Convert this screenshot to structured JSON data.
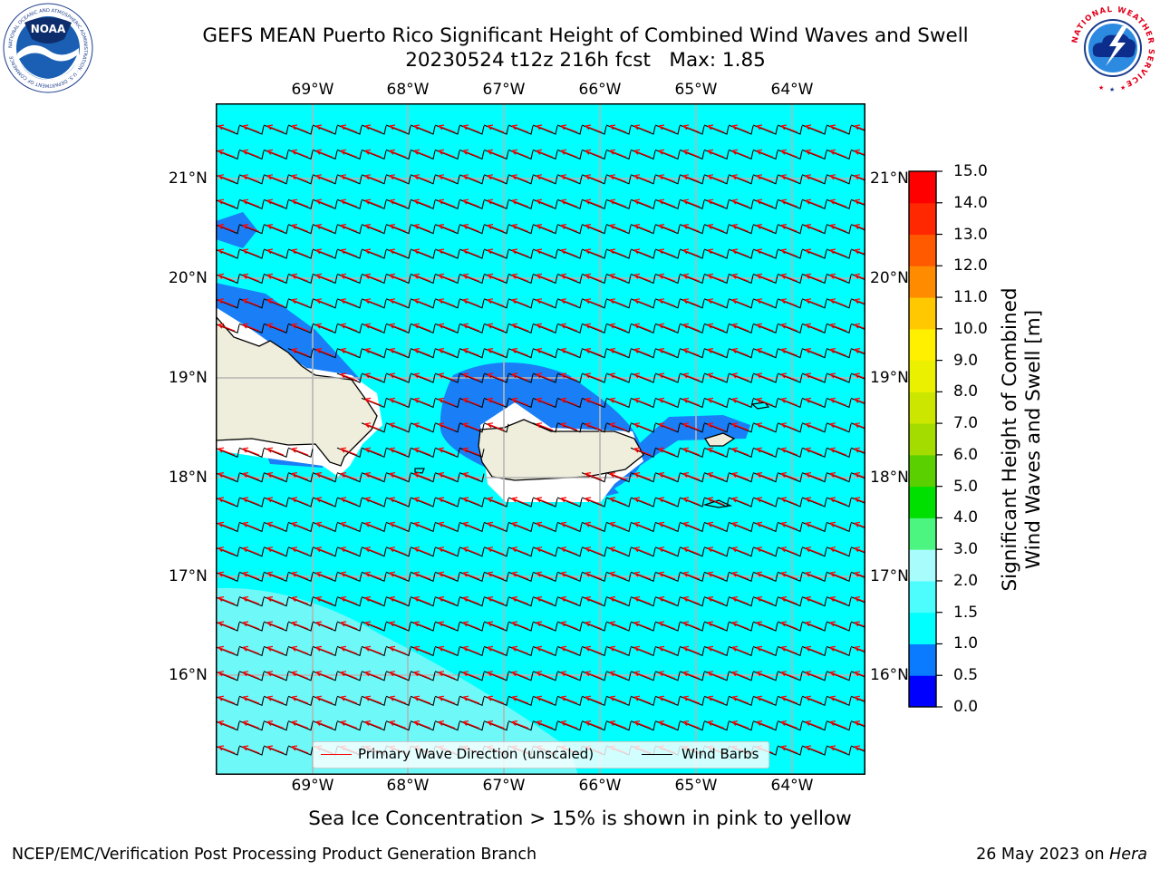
{
  "title": {
    "line1": "GEFS MEAN Puerto Rico Significant Height of Combined Wind Waves and Swell",
    "line2": "20230524 t12z 216h fcst   Max: 1.85"
  },
  "logos": {
    "noaa": {
      "text": "NOAA",
      "ring_text": "NATIONAL OCEANIC AND ATMOSPHERIC ADMINISTRATION · U.S. DEPARTMENT OF COMMERCE",
      "color": "#1a3c8c"
    },
    "nws": {
      "ring_text": "NATIONAL WEATHER SERVICE",
      "color": "#e0001b"
    }
  },
  "axes": {
    "lon_ticks": [
      "69°W",
      "68°W",
      "67°W",
      "66°W",
      "65°W",
      "64°W"
    ],
    "lat_ticks": [
      "21°N",
      "20°N",
      "19°N",
      "18°N",
      "17°N",
      "16°N"
    ]
  },
  "colorbar": {
    "label_line1": "Significant Height of Combined",
    "label_line2": "Wind Waves and Swell [m]",
    "ticks": [
      "0.0",
      "0.5",
      "1.0",
      "1.5",
      "2.0",
      "3.0",
      "4.0",
      "5.0",
      "6.0",
      "7.0",
      "8.0",
      "9.0",
      "10.0",
      "11.0",
      "12.0",
      "13.0",
      "14.0",
      "15.0"
    ],
    "colors": [
      "#0000ff",
      "#0a7bff",
      "#00ffff",
      "#4dfdfd",
      "#a8fcfc",
      "#4cf580",
      "#00e000",
      "#5ad000",
      "#a4dc00",
      "#cce600",
      "#eaf000",
      "#fff000",
      "#ffc800",
      "#ff8c00",
      "#ff5a00",
      "#ff2800",
      "#ff0000"
    ]
  },
  "legend": {
    "wave_label": "Primary Wave Direction (unscaled)",
    "wind_label": "Wind Barbs",
    "wave_color": "#ff0000",
    "wind_color": "#000000"
  },
  "map_colors": {
    "sea": "#00ffff",
    "land": "#efeddb",
    "low_wave": "#1a7ef7",
    "lowest_wave": "#0000ff",
    "south_band": "#6ff8f8"
  },
  "caption": "Sea Ice Concentration > 15% is shown in pink to yellow",
  "footer": {
    "left": "NCEP/EMC/Verification Post Processing Product Generation Branch",
    "right_prefix": "26 May 2023 on ",
    "right_host": "Hera"
  }
}
